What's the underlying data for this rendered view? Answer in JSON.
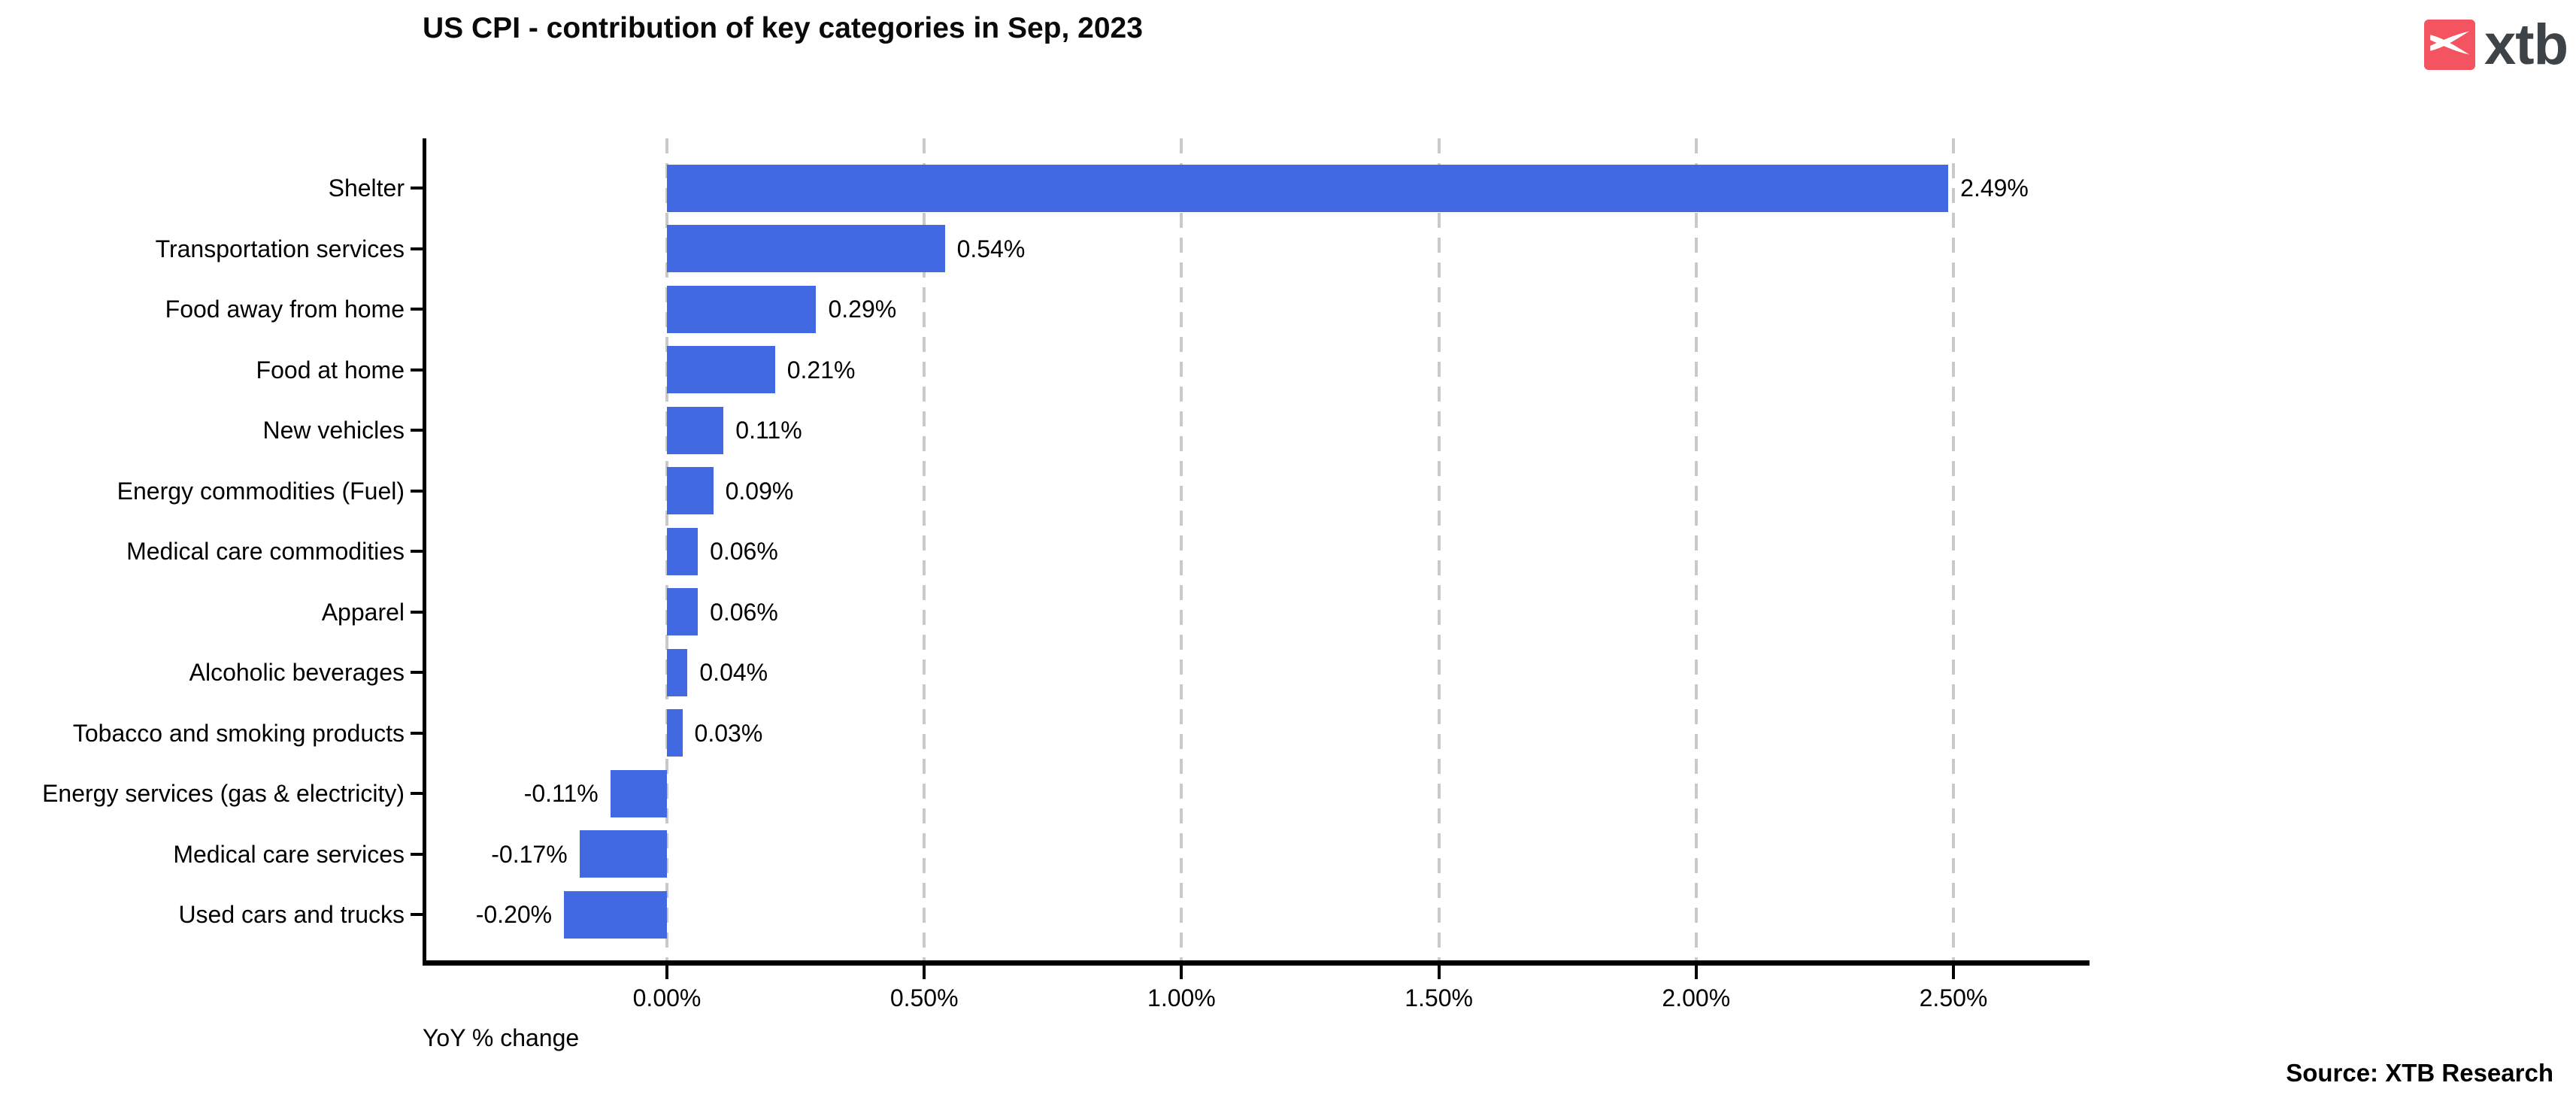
{
  "header": {
    "title": "US CPI - contribution of key categories in Sep, 2023"
  },
  "logo": {
    "brand": "xtb",
    "square_color": "#f4545f",
    "mark": "xtb-bird-x-icon",
    "text_color": "#3e4347"
  },
  "footer": {
    "source": "Source: XTB Research"
  },
  "chart_data": {
    "type": "bar",
    "orientation": "horizontal",
    "title": "US CPI - contribution of key categories in Sep, 2023",
    "xlabel": "YoY % change",
    "categories": [
      "Shelter",
      "Transportation services",
      "Food away from home",
      "Food at home",
      "New vehicles",
      "Energy commodities (Fuel)",
      "Medical care commodities",
      "Apparel",
      "Alcoholic beverages",
      "Tobacco and smoking products",
      "Energy services (gas & electricity)",
      "Medical care services",
      "Used cars and trucks"
    ],
    "values": [
      2.49,
      0.54,
      0.29,
      0.21,
      0.11,
      0.09,
      0.06,
      0.06,
      0.04,
      0.03,
      -0.11,
      -0.17,
      -0.2
    ],
    "value_labels": [
      "2.49%",
      "0.54%",
      "0.29%",
      "0.21%",
      "0.11%",
      "0.09%",
      "0.06%",
      "0.06%",
      "0.04%",
      "0.03%",
      "-0.11%",
      "-0.17%",
      "-0.20%"
    ],
    "xticks": {
      "values": [
        0,
        0.5,
        1.0,
        1.5,
        2.0,
        2.5
      ],
      "labels": [
        "0.00%",
        "0.50%",
        "1.00%",
        "1.50%",
        "2.00%",
        "2.50%"
      ]
    },
    "xlim": [
      -0.48,
      2.77
    ],
    "bar_color": "#4169e1",
    "grid": {
      "axis": "x",
      "style": "dashed",
      "color": "#c9c9c9"
    },
    "axis_color": "#000000"
  }
}
